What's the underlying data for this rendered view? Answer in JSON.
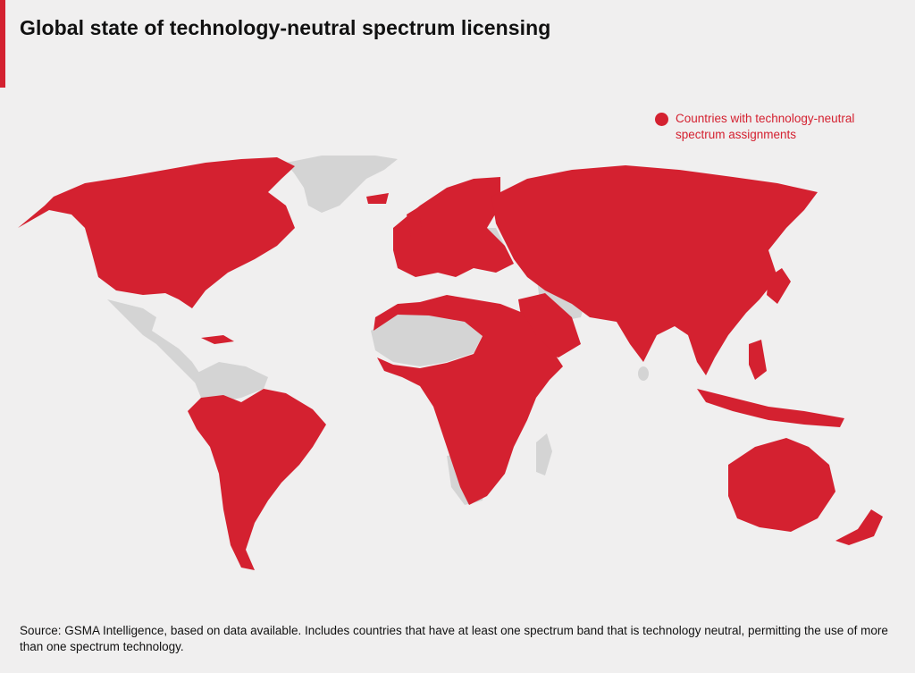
{
  "title": "Global state of technology-neutral spectrum licensing",
  "legend": {
    "label": "Countries with technology-neutral spectrum assignments"
  },
  "colors": {
    "accent": "#d42130",
    "licensed": "#d42130",
    "other": "#d4d4d4",
    "background": "#f0efef"
  },
  "source": "Source: GSMA Intelligence, based on data available. Includes countries that have at least one spectrum band that is technology neutral, permitting the use of more than one spectrum technology."
}
